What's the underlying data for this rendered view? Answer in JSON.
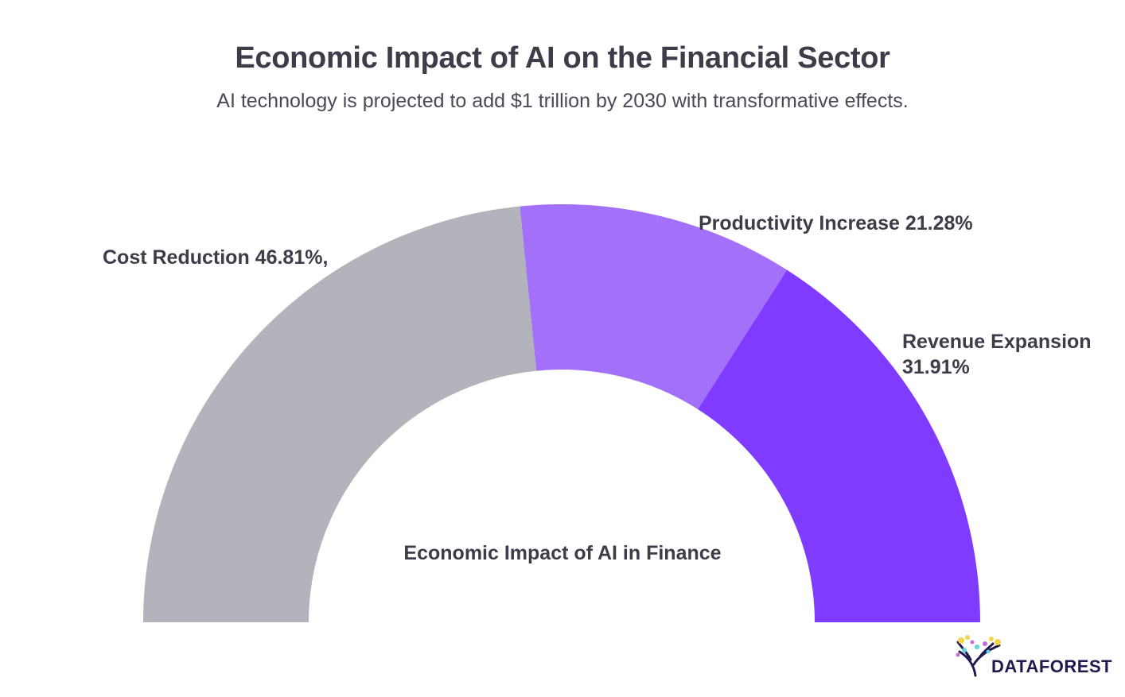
{
  "title": "Economic Impact of AI on the Financial Sector",
  "subtitle": "AI technology is projected to add $1 trillion by 2030 with transformative effects.",
  "chart_data": {
    "type": "pie",
    "variant": "semi-donut",
    "title": "Economic Impact of AI on the Financial Sector",
    "subtitle": "AI technology is projected to add $1 trillion by 2030 with transformative effects.",
    "center_label": "Economic Impact of AI in Finance",
    "slices": [
      {
        "name": "Cost Reduction",
        "value": 46.81,
        "label": "Cost Reduction 46.81%,",
        "color": "#b3b3bb"
      },
      {
        "name": "Productivity Increase",
        "value": 21.28,
        "label": "Productivity Increase 21.28%",
        "color": "#a370fa"
      },
      {
        "name": "Revenue Expansion",
        "value": 31.91,
        "label_lines": [
          "Revenue Expansion",
          "31.91%"
        ],
        "color": "#7f3bff"
      }
    ],
    "legend": "none",
    "unit": "%"
  },
  "logo": {
    "text": "DATAFOREST",
    "icon": "tree-icon"
  }
}
